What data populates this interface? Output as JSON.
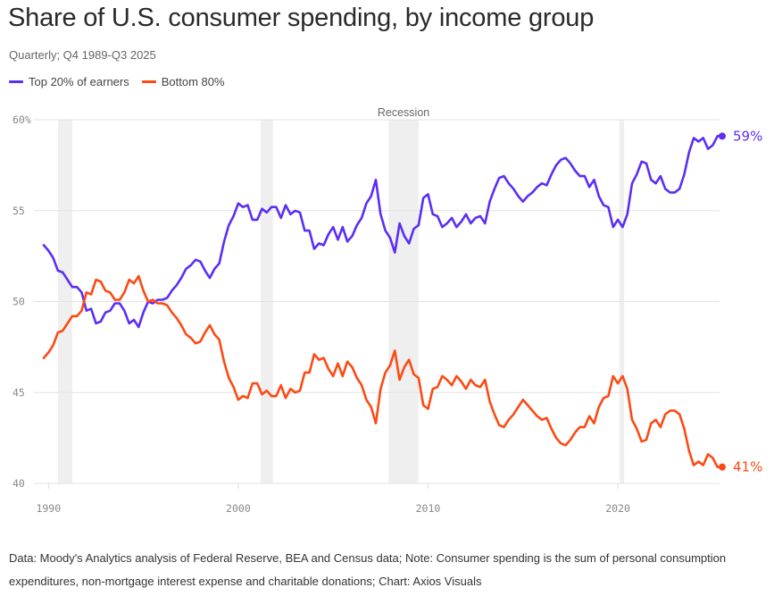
{
  "header": {
    "title": "Share of U.S. consumer spending, by income group",
    "subtitle": "Quarterly; Q4 1989-Q3 2025"
  },
  "legend": [
    {
      "label": "Top 20% of earners",
      "color": "#5b2ef5"
    },
    {
      "label": "Bottom 80%",
      "color": "#fc4a14"
    }
  ],
  "footer": {
    "text": "Data: Moody's Analytics analysis of Federal Reserve, BEA and Census data; Note: Consumer spending is the sum of personal consumption expenditures, non-mortgage interest expense and charitable donations; Chart: Axios Visuals"
  },
  "chart_data": {
    "type": "line",
    "title": "Share of U.S. consumer spending, by income group",
    "subtitle": "Quarterly; Q4 1989-Q3 2025",
    "xlabel": "",
    "ylabel": "",
    "xlim": [
      1989.75,
      2025.5
    ],
    "ylim": [
      40,
      60
    ],
    "x_ticks": [
      1990,
      2000,
      2010,
      2020
    ],
    "x_tick_labels": [
      "1990",
      "2000",
      "2010",
      "2020"
    ],
    "y_ticks": [
      40,
      45,
      50,
      55,
      60
    ],
    "y_tick_labels": [
      "40",
      "45",
      "50",
      "55",
      "60%"
    ],
    "grid": true,
    "legend_position": "top-left",
    "recession_label": "Recession",
    "recessions": [
      [
        1990.5,
        1991.25
      ],
      [
        2001.17,
        2001.83
      ],
      [
        2007.92,
        2009.5
      ],
      [
        2020.08,
        2020.33
      ]
    ],
    "end_labels": [
      {
        "series": "Top 20% of earners",
        "text": "59%"
      },
      {
        "series": "Bottom 80%",
        "text": "41%"
      }
    ],
    "series": [
      {
        "name": "Top 20% of earners",
        "color": "#5b2ef5",
        "points": [
          [
            1989.75,
            53.1
          ],
          [
            1990.0,
            52.8
          ],
          [
            1990.25,
            52.4
          ],
          [
            1990.5,
            51.7
          ],
          [
            1990.75,
            51.6
          ],
          [
            1991.0,
            51.2
          ],
          [
            1991.25,
            50.8
          ],
          [
            1991.5,
            50.8
          ],
          [
            1991.75,
            50.5
          ],
          [
            1992.0,
            49.5
          ],
          [
            1992.25,
            49.6
          ],
          [
            1992.5,
            48.8
          ],
          [
            1992.75,
            48.9
          ],
          [
            1993.0,
            49.4
          ],
          [
            1993.25,
            49.5
          ],
          [
            1993.5,
            49.9
          ],
          [
            1993.75,
            49.9
          ],
          [
            1994.0,
            49.5
          ],
          [
            1994.25,
            48.8
          ],
          [
            1994.5,
            49.0
          ],
          [
            1994.75,
            48.6
          ],
          [
            1995.0,
            49.4
          ],
          [
            1995.25,
            50.0
          ],
          [
            1995.5,
            49.9
          ],
          [
            1995.75,
            50.1
          ],
          [
            1996.0,
            50.1
          ],
          [
            1996.25,
            50.2
          ],
          [
            1996.5,
            50.6
          ],
          [
            1996.75,
            50.9
          ],
          [
            1997.0,
            51.3
          ],
          [
            1997.25,
            51.8
          ],
          [
            1997.5,
            52.0
          ],
          [
            1997.75,
            52.3
          ],
          [
            1998.0,
            52.2
          ],
          [
            1998.25,
            51.7
          ],
          [
            1998.5,
            51.3
          ],
          [
            1998.75,
            51.8
          ],
          [
            1999.0,
            52.1
          ],
          [
            1999.25,
            53.3
          ],
          [
            1999.5,
            54.2
          ],
          [
            1999.75,
            54.7
          ],
          [
            2000.0,
            55.4
          ],
          [
            2000.25,
            55.2
          ],
          [
            2000.5,
            55.3
          ],
          [
            2000.75,
            54.5
          ],
          [
            2001.0,
            54.5
          ],
          [
            2001.25,
            55.1
          ],
          [
            2001.5,
            54.9
          ],
          [
            2001.75,
            55.2
          ],
          [
            2002.0,
            55.2
          ],
          [
            2002.25,
            54.6
          ],
          [
            2002.5,
            55.3
          ],
          [
            2002.75,
            54.8
          ],
          [
            2003.0,
            55.0
          ],
          [
            2003.25,
            54.9
          ],
          [
            2003.5,
            53.9
          ],
          [
            2003.75,
            53.9
          ],
          [
            2004.0,
            52.9
          ],
          [
            2004.25,
            53.2
          ],
          [
            2004.5,
            53.1
          ],
          [
            2004.75,
            53.7
          ],
          [
            2005.0,
            54.1
          ],
          [
            2005.25,
            53.4
          ],
          [
            2005.5,
            54.1
          ],
          [
            2005.75,
            53.3
          ],
          [
            2006.0,
            53.6
          ],
          [
            2006.25,
            54.2
          ],
          [
            2006.5,
            54.6
          ],
          [
            2006.75,
            55.4
          ],
          [
            2007.0,
            55.8
          ],
          [
            2007.25,
            56.7
          ],
          [
            2007.5,
            54.8
          ],
          [
            2007.75,
            53.9
          ],
          [
            2008.0,
            53.5
          ],
          [
            2008.25,
            52.7
          ],
          [
            2008.5,
            54.3
          ],
          [
            2008.75,
            53.6
          ],
          [
            2009.0,
            53.2
          ],
          [
            2009.25,
            54.0
          ],
          [
            2009.5,
            54.2
          ],
          [
            2009.75,
            55.7
          ],
          [
            2010.0,
            55.9
          ],
          [
            2010.25,
            54.8
          ],
          [
            2010.5,
            54.7
          ],
          [
            2010.75,
            54.1
          ],
          [
            2011.0,
            54.3
          ],
          [
            2011.25,
            54.6
          ],
          [
            2011.5,
            54.1
          ],
          [
            2011.75,
            54.4
          ],
          [
            2012.0,
            54.8
          ],
          [
            2012.25,
            54.3
          ],
          [
            2012.5,
            54.6
          ],
          [
            2012.75,
            54.7
          ],
          [
            2013.0,
            54.3
          ],
          [
            2013.25,
            55.5
          ],
          [
            2013.5,
            56.2
          ],
          [
            2013.75,
            56.8
          ],
          [
            2014.0,
            56.9
          ],
          [
            2014.25,
            56.5
          ],
          [
            2014.5,
            56.2
          ],
          [
            2014.75,
            55.8
          ],
          [
            2015.0,
            55.5
          ],
          [
            2015.25,
            55.8
          ],
          [
            2015.5,
            56.0
          ],
          [
            2015.75,
            56.3
          ],
          [
            2016.0,
            56.5
          ],
          [
            2016.25,
            56.4
          ],
          [
            2016.5,
            57.0
          ],
          [
            2016.75,
            57.5
          ],
          [
            2017.0,
            57.8
          ],
          [
            2017.25,
            57.9
          ],
          [
            2017.5,
            57.6
          ],
          [
            2017.75,
            57.2
          ],
          [
            2018.0,
            56.9
          ],
          [
            2018.25,
            56.9
          ],
          [
            2018.5,
            56.3
          ],
          [
            2018.75,
            56.7
          ],
          [
            2019.0,
            55.8
          ],
          [
            2019.25,
            55.3
          ],
          [
            2019.5,
            55.2
          ],
          [
            2019.75,
            54.1
          ],
          [
            2020.0,
            54.5
          ],
          [
            2020.25,
            54.1
          ],
          [
            2020.5,
            54.8
          ],
          [
            2020.75,
            56.5
          ],
          [
            2021.0,
            57.0
          ],
          [
            2021.25,
            57.7
          ],
          [
            2021.5,
            57.6
          ],
          [
            2021.75,
            56.7
          ],
          [
            2022.0,
            56.5
          ],
          [
            2022.25,
            56.9
          ],
          [
            2022.5,
            56.2
          ],
          [
            2022.75,
            56.0
          ],
          [
            2023.0,
            56.0
          ],
          [
            2023.25,
            56.2
          ],
          [
            2023.5,
            57.0
          ],
          [
            2023.75,
            58.2
          ],
          [
            2024.0,
            59.0
          ],
          [
            2024.25,
            58.8
          ],
          [
            2024.5,
            59.0
          ],
          [
            2024.75,
            58.4
          ],
          [
            2025.0,
            58.6
          ],
          [
            2025.25,
            59.1
          ],
          [
            2025.5,
            59.1
          ]
        ]
      },
      {
        "name": "Bottom 80%",
        "color": "#fc4a14",
        "points": [
          [
            1989.75,
            46.9
          ],
          [
            1990.0,
            47.2
          ],
          [
            1990.25,
            47.6
          ],
          [
            1990.5,
            48.3
          ],
          [
            1990.75,
            48.4
          ],
          [
            1991.0,
            48.8
          ],
          [
            1991.25,
            49.2
          ],
          [
            1991.5,
            49.2
          ],
          [
            1991.75,
            49.5
          ],
          [
            1992.0,
            50.5
          ],
          [
            1992.25,
            50.4
          ],
          [
            1992.5,
            51.2
          ],
          [
            1992.75,
            51.1
          ],
          [
            1993.0,
            50.6
          ],
          [
            1993.25,
            50.5
          ],
          [
            1993.5,
            50.1
          ],
          [
            1993.75,
            50.1
          ],
          [
            1994.0,
            50.5
          ],
          [
            1994.25,
            51.2
          ],
          [
            1994.5,
            51.0
          ],
          [
            1994.75,
            51.4
          ],
          [
            1995.0,
            50.6
          ],
          [
            1995.25,
            50.0
          ],
          [
            1995.5,
            50.1
          ],
          [
            1995.75,
            49.9
          ],
          [
            1996.0,
            49.9
          ],
          [
            1996.25,
            49.8
          ],
          [
            1996.5,
            49.4
          ],
          [
            1996.75,
            49.1
          ],
          [
            1997.0,
            48.7
          ],
          [
            1997.25,
            48.2
          ],
          [
            1997.5,
            48.0
          ],
          [
            1997.75,
            47.7
          ],
          [
            1998.0,
            47.8
          ],
          [
            1998.25,
            48.3
          ],
          [
            1998.5,
            48.7
          ],
          [
            1998.75,
            48.2
          ],
          [
            1999.0,
            47.9
          ],
          [
            1999.25,
            46.7
          ],
          [
            1999.5,
            45.8
          ],
          [
            1999.75,
            45.3
          ],
          [
            2000.0,
            44.6
          ],
          [
            2000.25,
            44.8
          ],
          [
            2000.5,
            44.7
          ],
          [
            2000.75,
            45.5
          ],
          [
            2001.0,
            45.5
          ],
          [
            2001.25,
            44.9
          ],
          [
            2001.5,
            45.1
          ],
          [
            2001.75,
            44.8
          ],
          [
            2002.0,
            44.8
          ],
          [
            2002.25,
            45.4
          ],
          [
            2002.5,
            44.7
          ],
          [
            2002.75,
            45.2
          ],
          [
            2003.0,
            45.0
          ],
          [
            2003.25,
            45.1
          ],
          [
            2003.5,
            46.1
          ],
          [
            2003.75,
            46.1
          ],
          [
            2004.0,
            47.1
          ],
          [
            2004.25,
            46.8
          ],
          [
            2004.5,
            46.9
          ],
          [
            2004.75,
            46.3
          ],
          [
            2005.0,
            45.9
          ],
          [
            2005.25,
            46.6
          ],
          [
            2005.5,
            45.9
          ],
          [
            2005.75,
            46.7
          ],
          [
            2006.0,
            46.4
          ],
          [
            2006.25,
            45.8
          ],
          [
            2006.5,
            45.4
          ],
          [
            2006.75,
            44.6
          ],
          [
            2007.0,
            44.2
          ],
          [
            2007.25,
            43.3
          ],
          [
            2007.5,
            45.2
          ],
          [
            2007.75,
            46.1
          ],
          [
            2008.0,
            46.5
          ],
          [
            2008.25,
            47.3
          ],
          [
            2008.5,
            45.7
          ],
          [
            2008.75,
            46.4
          ],
          [
            2009.0,
            46.8
          ],
          [
            2009.25,
            46.0
          ],
          [
            2009.5,
            45.8
          ],
          [
            2009.75,
            44.3
          ],
          [
            2010.0,
            44.1
          ],
          [
            2010.25,
            45.2
          ],
          [
            2010.5,
            45.3
          ],
          [
            2010.75,
            45.9
          ],
          [
            2011.0,
            45.7
          ],
          [
            2011.25,
            45.4
          ],
          [
            2011.5,
            45.9
          ],
          [
            2011.75,
            45.6
          ],
          [
            2012.0,
            45.2
          ],
          [
            2012.25,
            45.7
          ],
          [
            2012.5,
            45.4
          ],
          [
            2012.75,
            45.3
          ],
          [
            2013.0,
            45.7
          ],
          [
            2013.25,
            44.5
          ],
          [
            2013.5,
            43.8
          ],
          [
            2013.75,
            43.2
          ],
          [
            2014.0,
            43.1
          ],
          [
            2014.25,
            43.5
          ],
          [
            2014.5,
            43.8
          ],
          [
            2014.75,
            44.2
          ],
          [
            2015.0,
            44.6
          ],
          [
            2015.25,
            44.3
          ],
          [
            2015.5,
            44.0
          ],
          [
            2015.75,
            43.7
          ],
          [
            2016.0,
            43.5
          ],
          [
            2016.25,
            43.6
          ],
          [
            2016.5,
            43.0
          ],
          [
            2016.75,
            42.5
          ],
          [
            2017.0,
            42.2
          ],
          [
            2017.25,
            42.1
          ],
          [
            2017.5,
            42.4
          ],
          [
            2017.75,
            42.8
          ],
          [
            2018.0,
            43.1
          ],
          [
            2018.25,
            43.1
          ],
          [
            2018.5,
            43.7
          ],
          [
            2018.75,
            43.3
          ],
          [
            2019.0,
            44.2
          ],
          [
            2019.25,
            44.7
          ],
          [
            2019.5,
            44.8
          ],
          [
            2019.75,
            45.9
          ],
          [
            2020.0,
            45.5
          ],
          [
            2020.25,
            45.9
          ],
          [
            2020.5,
            45.2
          ],
          [
            2020.75,
            43.5
          ],
          [
            2021.0,
            43.0
          ],
          [
            2021.25,
            42.3
          ],
          [
            2021.5,
            42.4
          ],
          [
            2021.75,
            43.3
          ],
          [
            2022.0,
            43.5
          ],
          [
            2022.25,
            43.1
          ],
          [
            2022.5,
            43.8
          ],
          [
            2022.75,
            44.0
          ],
          [
            2023.0,
            44.0
          ],
          [
            2023.25,
            43.8
          ],
          [
            2023.5,
            43.0
          ],
          [
            2023.75,
            41.8
          ],
          [
            2024.0,
            41.0
          ],
          [
            2024.25,
            41.2
          ],
          [
            2024.5,
            41.0
          ],
          [
            2024.75,
            41.6
          ],
          [
            2025.0,
            41.4
          ],
          [
            2025.25,
            40.9
          ],
          [
            2025.5,
            40.9
          ]
        ]
      }
    ]
  }
}
